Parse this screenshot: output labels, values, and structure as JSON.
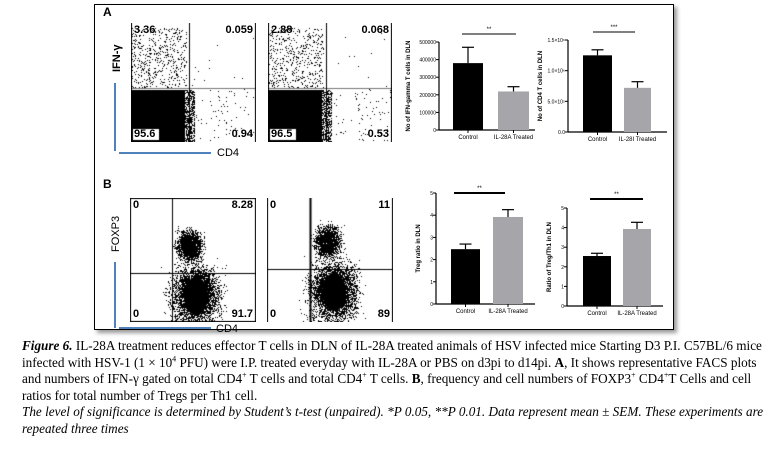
{
  "panelA": {
    "label": "A",
    "y_marker": "IFN-γ",
    "x_marker": "CD4",
    "plots": [
      {
        "quadrants": {
          "ul": "3.36",
          "ur": "0.059",
          "ll": "95.6",
          "lr": "0.94"
        }
      },
      {
        "quadrants": {
          "ul": "2.88",
          "ur": "0.068",
          "ll": "96.5",
          "lr": "0.53"
        }
      }
    ]
  },
  "panelB": {
    "label": "B",
    "y_marker": "FOXP3",
    "x_marker": "CD4",
    "plots": [
      {
        "quadrants": {
          "ul": "0",
          "ur": "8.28",
          "ll": "0",
          "lr": "91.7"
        }
      },
      {
        "quadrants": {
          "ul": "0",
          "ur": "11",
          "ll": "0",
          "lr": "89"
        }
      }
    ]
  },
  "chart_data": [
    {
      "type": "bar",
      "ylabel": "No of IFN-gamma T cells in DLN",
      "categories": [
        "Control",
        "IL-28A Treated"
      ],
      "values": [
        380000,
        219000
      ],
      "errors": [
        90000,
        27000
      ],
      "yticks": [
        0,
        100000,
        200000,
        300000,
        400000,
        500000
      ],
      "ytick_labels": [
        "0",
        "100000",
        "200000",
        "300000",
        "400000",
        "500000"
      ],
      "ylim": [
        0,
        500000
      ],
      "significance": "**",
      "colors": [
        "#000000",
        "#a6a6aa"
      ]
    },
    {
      "type": "bar",
      "ylabel": "No of CD4 T cells in DLN",
      "categories": [
        "Control",
        "IL-28I Treated"
      ],
      "values": [
        1250000,
        720000
      ],
      "errors": [
        90000,
        100000
      ],
      "yticks": [
        0,
        500000,
        1000000,
        1500000
      ],
      "ytick_labels": [
        "0.0",
        "5.0×10⁵",
        "1.0×10⁶",
        "1.5×10⁶"
      ],
      "ylim": [
        0,
        1500000
      ],
      "significance": "***",
      "colors": [
        "#000000",
        "#a6a6aa"
      ]
    },
    {
      "type": "bar",
      "ylabel": "Treg ratio in DLN",
      "categories": [
        "Control",
        "IL-28A Treated"
      ],
      "values": [
        2.47,
        3.92
      ],
      "errors": [
        0.23,
        0.33
      ],
      "yticks": [
        0,
        1,
        2,
        3,
        4,
        5
      ],
      "ytick_labels": [
        "0",
        "1",
        "2",
        "3",
        "4",
        "5"
      ],
      "ylim": [
        0,
        5
      ],
      "significance": "**",
      "colors": [
        "#000000",
        "#a6a6aa"
      ]
    },
    {
      "type": "bar",
      "ylabel": "Ratio of Treg/Th1 in DLN",
      "categories": [
        "Control",
        "IL-28A Treated"
      ],
      "values": [
        2.55,
        3.93
      ],
      "errors": [
        0.14,
        0.34
      ],
      "yticks": [
        0,
        1,
        2,
        3,
        4,
        5
      ],
      "ytick_labels": [
        "0",
        "1",
        "2",
        "3",
        "4",
        "5"
      ],
      "ylim": [
        0,
        5
      ],
      "significance": "**",
      "colors": [
        "#000000",
        "#a6a6aa"
      ]
    }
  ],
  "caption": {
    "fig_label": "Figure 6.",
    "s1": " IL-28A treatment reduces effector T cells in DLN of IL-28A treated animals of HSV infected mice Starting D3 P.I. C57BL/6 mice infected with HSV-1 (1 × 10",
    "sup1": "4",
    "s2": " PFU) were I.P. treated everyday with IL-28A or PBS on d3pi to d14pi. ",
    "bA": "A",
    "s3": ", It shows representative FACS plots and numbers of IFN-γ gated on total CD4",
    "sup2": "+",
    "s4": " T cells and total CD4",
    "sup3": "+",
    "s5": " T cells. ",
    "bB": "B",
    "s6": ", frequency and cell numbers of FOXP3",
    "sup4": "+",
    "s7": " CD4",
    "sup5": "+",
    "s8": "T Cells and cell ratios for total number of Tregs per Th1 cell.",
    "note": "The level of significance is determined by Student’s t-test (unpaired). *P 0.05, **P 0.01. Data represent mean ± SEM. These experiments are repeated three times"
  }
}
